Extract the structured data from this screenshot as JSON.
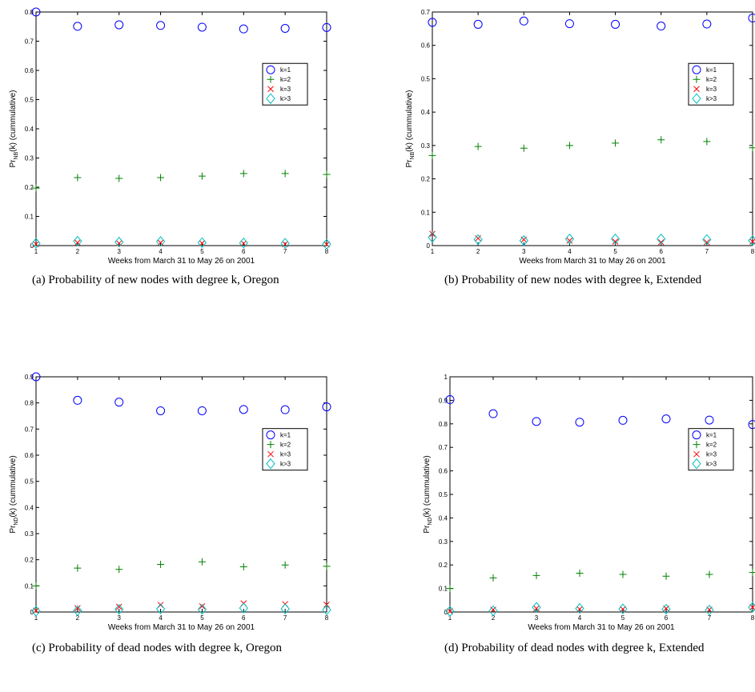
{
  "chart_data": [
    {
      "type": "scatter",
      "caption": "(a) Probability of new nodes with degree k, Oregon",
      "x_label": "Weeks from March 31 to May 26 on 2001",
      "y_label": [
        "Pr",
        "NB",
        "(k) (cummulative)"
      ],
      "x": [
        1,
        2,
        3,
        4,
        5,
        6,
        7,
        8
      ],
      "xlim": [
        1,
        8
      ],
      "xticks": [
        1,
        2,
        3,
        4,
        5,
        6,
        7,
        8
      ],
      "ylim": [
        0,
        0.8
      ],
      "yticks": [
        0,
        0.1,
        0.2,
        0.3,
        0.4,
        0.5,
        0.6,
        0.7,
        0.8
      ],
      "legend": "right",
      "series": [
        {
          "name": "k=1",
          "color": "#0000ff",
          "marker": "o",
          "values": [
            0.8,
            0.751,
            0.756,
            0.754,
            0.748,
            0.742,
            0.744,
            0.747
          ]
        },
        {
          "name": "k=2",
          "color": "#008000",
          "marker": "+",
          "values": [
            0.197,
            0.233,
            0.23,
            0.233,
            0.238,
            0.247,
            0.247,
            0.244
          ]
        },
        {
          "name": "k=3",
          "color": "#ff0000",
          "marker": "x",
          "values": [
            0.005,
            0.01,
            0.008,
            0.01,
            0.008,
            0.007,
            0.005,
            0.004
          ]
        },
        {
          "name": "k>3",
          "color": "#00bfbf",
          "marker": "d",
          "values": [
            0.008,
            0.015,
            0.012,
            0.014,
            0.01,
            0.009,
            0.008,
            0.005
          ]
        }
      ]
    },
    {
      "type": "scatter",
      "caption": "(b) Probability of new nodes with degree k, Extended",
      "x_label": "Weeks from March 31 to May 26 on 2001",
      "y_label": [
        "Pr",
        "NB",
        "(k) (cummulative)"
      ],
      "x": [
        1,
        2,
        3,
        4,
        5,
        6,
        7,
        8
      ],
      "xlim": [
        1,
        8
      ],
      "xticks": [
        1,
        2,
        3,
        4,
        5,
        6,
        7,
        8
      ],
      "ylim": [
        0,
        0.7
      ],
      "yticks": [
        0,
        0.1,
        0.2,
        0.3,
        0.4,
        0.5,
        0.6,
        0.7
      ],
      "legend": "right",
      "series": [
        {
          "name": "k=1",
          "color": "#0000ff",
          "marker": "o",
          "values": [
            0.669,
            0.663,
            0.673,
            0.665,
            0.663,
            0.658,
            0.664,
            0.682
          ]
        },
        {
          "name": "k=2",
          "color": "#008000",
          "marker": "+",
          "values": [
            0.27,
            0.297,
            0.292,
            0.3,
            0.307,
            0.317,
            0.312,
            0.293
          ]
        },
        {
          "name": "k=3",
          "color": "#ff0000",
          "marker": "x",
          "values": [
            0.035,
            0.022,
            0.018,
            0.015,
            0.012,
            0.01,
            0.01,
            0.012
          ]
        },
        {
          "name": "k>3",
          "color": "#00bfbf",
          "marker": "d",
          "values": [
            0.025,
            0.018,
            0.015,
            0.02,
            0.02,
            0.02,
            0.018,
            0.015
          ]
        }
      ]
    },
    {
      "type": "scatter",
      "caption": "(c) Probability of dead nodes with degree k, Oregon",
      "x_label": "Weeks from March 31 to May 26 on 2001",
      "y_label": [
        "Pr",
        "ND",
        "(k) (cummulative)"
      ],
      "x": [
        1,
        2,
        3,
        4,
        5,
        6,
        7,
        8
      ],
      "xlim": [
        1,
        8
      ],
      "xticks": [
        1,
        2,
        3,
        4,
        5,
        6,
        7,
        8
      ],
      "ylim": [
        0,
        0.9
      ],
      "yticks": [
        0,
        0.1,
        0.2,
        0.3,
        0.4,
        0.5,
        0.6,
        0.7,
        0.8,
        0.9
      ],
      "legend": "right",
      "series": [
        {
          "name": "k=1",
          "color": "#0000ff",
          "marker": "o",
          "values": [
            0.9,
            0.81,
            0.803,
            0.77,
            0.77,
            0.775,
            0.774,
            0.785
          ]
        },
        {
          "name": "k=2",
          "color": "#008000",
          "marker": "+",
          "values": [
            0.1,
            0.168,
            0.163,
            0.182,
            0.192,
            0.173,
            0.18,
            0.175
          ]
        },
        {
          "name": "k=3",
          "color": "#ff0000",
          "marker": "x",
          "values": [
            0.005,
            0.015,
            0.02,
            0.027,
            0.022,
            0.033,
            0.03,
            0.028
          ]
        },
        {
          "name": "k>3",
          "color": "#00bfbf",
          "marker": "d",
          "values": [
            0.003,
            0.005,
            0.01,
            0.012,
            0.01,
            0.015,
            0.012,
            0.008
          ]
        }
      ]
    },
    {
      "type": "scatter",
      "caption": "(d) Probability of dead nodes with degree k, Extended",
      "x_label": "Weeks from March 31 to May 26 on 2001",
      "y_label": [
        "Pr",
        "ND",
        "(k) (cummulative)"
      ],
      "x": [
        1,
        2,
        3,
        4,
        5,
        6,
        7,
        8
      ],
      "xlim": [
        1,
        8
      ],
      "xticks": [
        1,
        2,
        3,
        4,
        5,
        6,
        7,
        8
      ],
      "ylim": [
        0,
        1
      ],
      "yticks": [
        0,
        0.1,
        0.2,
        0.3,
        0.4,
        0.5,
        0.6,
        0.7,
        0.8,
        0.9,
        1
      ],
      "legend": "right",
      "series": [
        {
          "name": "k=1",
          "color": "#0000ff",
          "marker": "o",
          "values": [
            0.903,
            0.843,
            0.81,
            0.807,
            0.815,
            0.821,
            0.816,
            0.797
          ]
        },
        {
          "name": "k=2",
          "color": "#008000",
          "marker": "+",
          "values": [
            0.1,
            0.145,
            0.155,
            0.165,
            0.16,
            0.152,
            0.16,
            0.168
          ]
        },
        {
          "name": "k=3",
          "color": "#ff0000",
          "marker": "x",
          "values": [
            0.003,
            0.01,
            0.015,
            0.012,
            0.012,
            0.015,
            0.01,
            0.02
          ]
        },
        {
          "name": "k>3",
          "color": "#00bfbf",
          "marker": "d",
          "values": [
            0.003,
            0.005,
            0.02,
            0.015,
            0.013,
            0.012,
            0.008,
            0.02
          ]
        }
      ]
    }
  ]
}
